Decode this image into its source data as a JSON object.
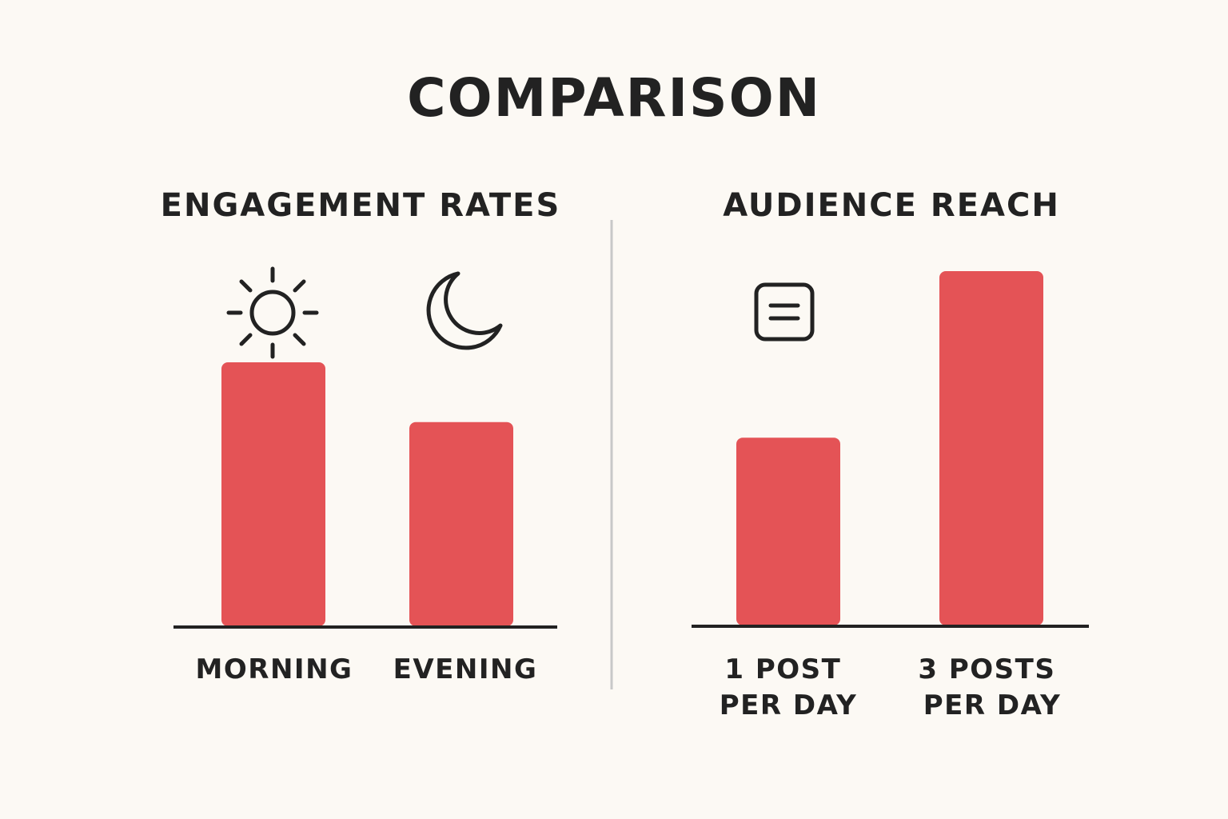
{
  "title": "COMPARISON",
  "colors": {
    "bar": "#e45356",
    "text": "#222222",
    "background": "#fcf9f4",
    "divider": "#c8c8c8"
  },
  "chart_data": [
    {
      "type": "bar",
      "title": "ENGAGEMENT RATES",
      "categories": [
        "MORNING",
        "EVENING"
      ],
      "values": [
        75,
        58
      ],
      "icons": [
        "sun-icon",
        "moon-icon"
      ],
      "ylim": [
        0,
        100
      ],
      "xlabel": "",
      "ylabel": "",
      "grid": false
    },
    {
      "type": "bar",
      "title": "AUDIENCE REACH",
      "categories": [
        [
          "1 POST",
          "PER DAY"
        ],
        [
          "3 POSTS",
          "PER DAY"
        ]
      ],
      "values": [
        53,
        100
      ],
      "icons": [
        "post-icon"
      ],
      "ylim": [
        0,
        100
      ],
      "xlabel": "",
      "ylabel": "",
      "grid": false
    }
  ]
}
